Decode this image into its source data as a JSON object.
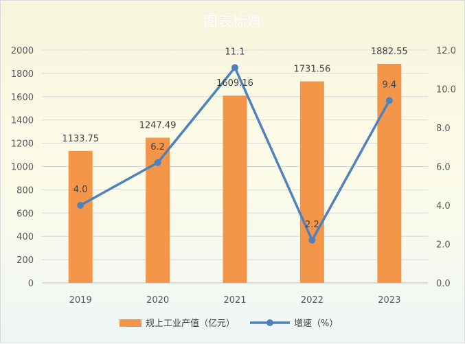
{
  "chart_data": {
    "type": "bar+line",
    "title": "图表标题",
    "categories": [
      "2019",
      "2020",
      "2021",
      "2022",
      "2023"
    ],
    "series": [
      {
        "name": "规上工业产值（亿元）",
        "type": "bar",
        "axis": "left",
        "values": [
          1133.75,
          1247.49,
          1609.16,
          1731.56,
          1882.55
        ],
        "labels": [
          "1133.75",
          "1247.49",
          "1609.16",
          "1731.56",
          "1882.55"
        ],
        "color": "#f4964a"
      },
      {
        "name": "增速（%）",
        "type": "line",
        "axis": "right",
        "values": [
          4.0,
          6.2,
          11.1,
          2.2,
          9.4
        ],
        "labels": [
          "4.0",
          "6.2",
          "11.1",
          "2.2",
          "9.4"
        ],
        "color": "#4f81bd"
      }
    ],
    "y_left": {
      "min": 0,
      "max": 2000,
      "step": 200,
      "ticks": [
        "0",
        "200",
        "400",
        "600",
        "800",
        "1000",
        "1200",
        "1400",
        "1600",
        "1800",
        "2000"
      ]
    },
    "y_right": {
      "min": 0,
      "max": 12,
      "step": 2,
      "ticks": [
        "0.0",
        "2.0",
        "4.0",
        "6.0",
        "8.0",
        "10.0",
        "12.0"
      ]
    },
    "grid": true,
    "legend_position": "bottom"
  }
}
